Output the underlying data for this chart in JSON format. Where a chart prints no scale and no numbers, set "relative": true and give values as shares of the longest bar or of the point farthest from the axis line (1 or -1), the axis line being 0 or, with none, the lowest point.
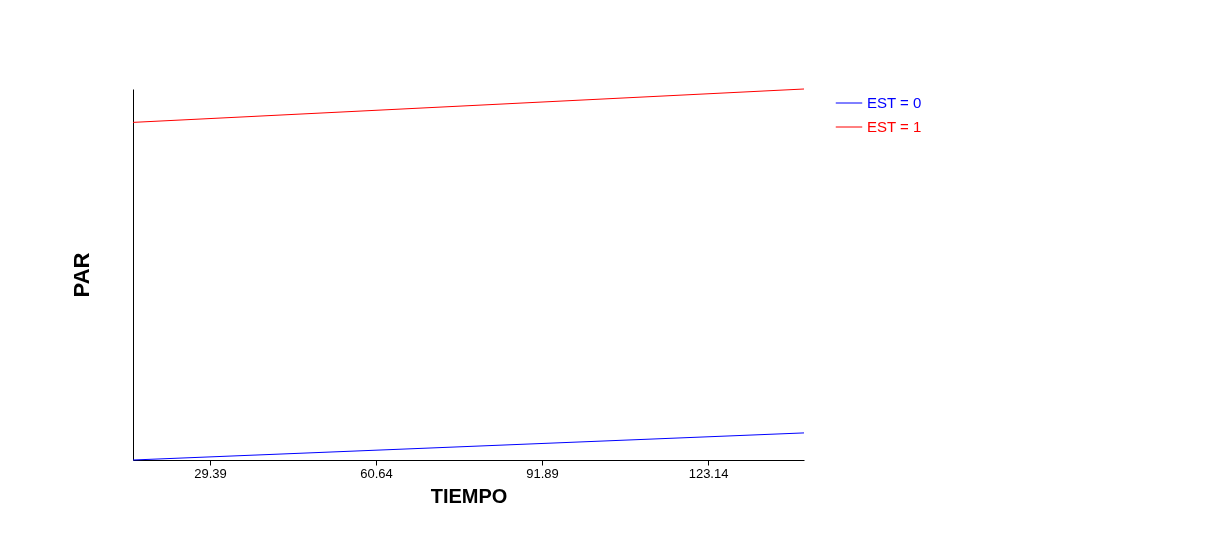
{
  "chart_data": {
    "type": "line",
    "relative": true,
    "xlabel": "TIEMPO",
    "ylabel": "PAR",
    "x": [
      14.9,
      141.2
    ],
    "xlim": [
      14.9,
      141.2
    ],
    "xticks": [
      29.39,
      60.64,
      91.89,
      123.14
    ],
    "legend": "top right",
    "grid": false,
    "series": [
      {
        "name": "EST = 0",
        "color": "#0000ff",
        "values": [
          0,
          0.073
        ]
      },
      {
        "name": "EST = 1",
        "color": "#ff0000",
        "values": [
          0.91,
          1
        ]
      }
    ]
  }
}
